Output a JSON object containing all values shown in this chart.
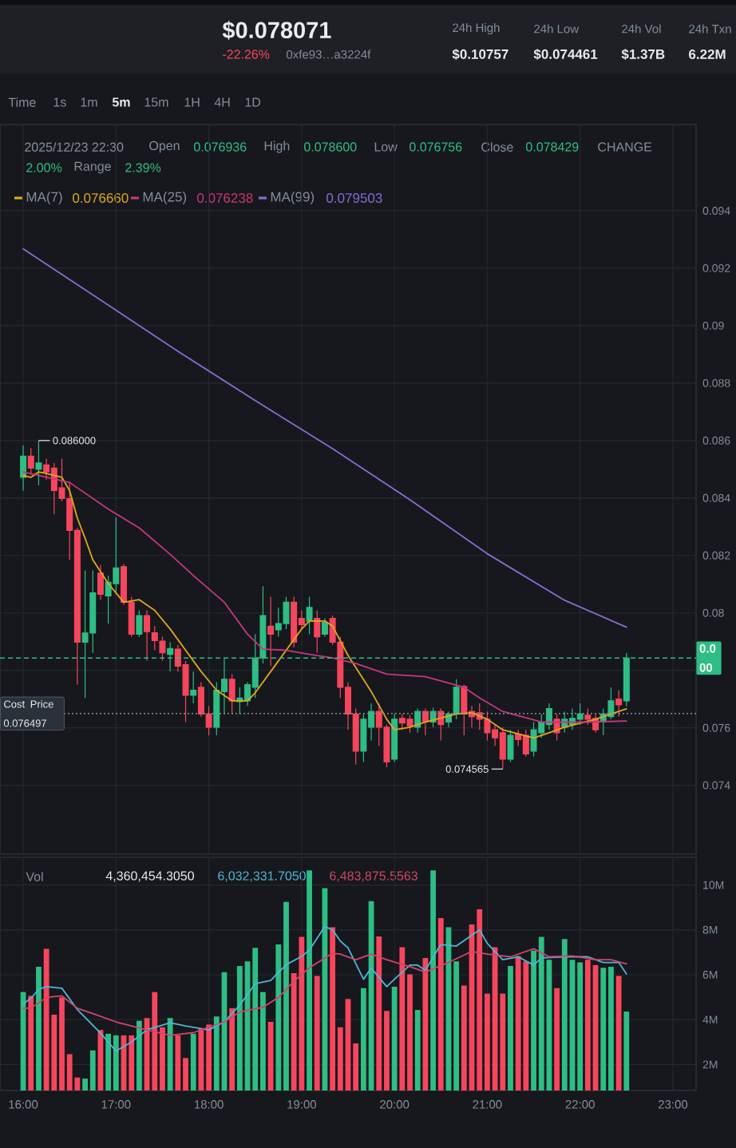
{
  "chart_data": [
    {
      "type": "candlestick",
      "title": "$0.078071",
      "subtitle": "-22.26%",
      "x": [
        16,
        16.0833,
        16.1667,
        16.25,
        16.3333,
        16.4167,
        16.5,
        16.5833,
        16.6667,
        16.75,
        16.8333,
        16.9167,
        17,
        17.0833,
        17.1667,
        17.25,
        17.3333,
        17.4167,
        17.5,
        17.5833,
        17.6667,
        17.75,
        17.8333,
        17.9167,
        18,
        18.0833,
        18.1667,
        18.25,
        18.3333,
        18.4167,
        18.5,
        18.5833,
        18.6667,
        18.75,
        18.8333,
        18.9167,
        19,
        19.0833,
        19.1667,
        19.25,
        19.3333,
        19.4167,
        19.5,
        19.5833,
        19.6667,
        19.75,
        19.8333,
        19.9167,
        20,
        20.0833,
        20.1667,
        20.25,
        20.3333,
        20.4167,
        20.5,
        20.5833,
        20.6667,
        20.75,
        20.8333,
        20.9167,
        21,
        21.0833,
        21.1667,
        21.25,
        21.3333,
        21.4167,
        21.5,
        21.5833,
        21.6667,
        21.75,
        21.8333,
        21.9167,
        22,
        22.0833,
        22.1667,
        22.25,
        22.3333,
        22.4167,
        22.5
      ],
      "ohlc": [
        [
          0.08472,
          0.08583,
          0.08426,
          0.08546
        ],
        [
          0.08546,
          0.08574,
          0.08481,
          0.08504
        ],
        [
          0.085,
          0.086,
          0.08444,
          0.08522
        ],
        [
          0.08515,
          0.08537,
          0.08463,
          0.08491
        ],
        [
          0.08504,
          0.08522,
          0.08343,
          0.08426
        ],
        [
          0.08435,
          0.08537,
          0.08389,
          0.08398
        ],
        [
          0.08398,
          0.08454,
          0.08185,
          0.08287
        ],
        [
          0.08287,
          0.08296,
          0.0775,
          0.07898
        ],
        [
          0.07898,
          0.08148,
          0.07704,
          0.0793
        ],
        [
          0.0793,
          0.08148,
          0.07861,
          0.0807
        ],
        [
          0.08139,
          0.08167,
          0.08046,
          0.08065
        ],
        [
          0.08059,
          0.0813,
          0.07963,
          0.08107
        ],
        [
          0.08102,
          0.08333,
          0.08065,
          0.08157
        ],
        [
          0.08161,
          0.0817,
          0.08028,
          0.08037
        ],
        [
          0.08037,
          0.08056,
          0.07917,
          0.07926
        ],
        [
          0.07926,
          0.08009,
          0.07917,
          0.07991
        ],
        [
          0.07991,
          0.08009,
          0.07833,
          0.07935
        ],
        [
          0.07931,
          0.07954,
          0.0787,
          0.07904
        ],
        [
          0.07902,
          0.07917,
          0.07833,
          0.07861
        ],
        [
          0.07856,
          0.07898,
          0.07796,
          0.07876
        ],
        [
          0.07874,
          0.07889,
          0.07796,
          0.07815
        ],
        [
          0.0782,
          0.07833,
          0.0762,
          0.07713
        ],
        [
          0.07713,
          0.07796,
          0.07685,
          0.07731
        ],
        [
          0.07741,
          0.07759,
          0.07639,
          0.07648
        ],
        [
          0.07648,
          0.07676,
          0.07574,
          0.07602
        ],
        [
          0.07602,
          0.07759,
          0.07574,
          0.07731
        ],
        [
          0.07726,
          0.07843,
          0.07648,
          0.07769
        ],
        [
          0.07769,
          0.07787,
          0.07648,
          0.07694
        ],
        [
          0.07691,
          0.07741,
          0.07648,
          0.07704
        ],
        [
          0.07694,
          0.07759,
          0.07676,
          0.0775
        ],
        [
          0.07741,
          0.07926,
          0.07704,
          0.07843
        ],
        [
          0.07843,
          0.08093,
          0.07824,
          0.07991
        ],
        [
          0.07954,
          0.08056,
          0.07815,
          0.07926
        ],
        [
          0.07941,
          0.08019,
          0.07917,
          0.07963
        ],
        [
          0.07963,
          0.08056,
          0.07944,
          0.08037
        ],
        [
          0.08037,
          0.08056,
          0.0788,
          0.07898
        ],
        [
          0.07981,
          0.08009,
          0.07944,
          0.07959
        ],
        [
          0.07972,
          0.08056,
          0.07926,
          0.08019
        ],
        [
          0.07981,
          0.08009,
          0.07861,
          0.07917
        ],
        [
          0.07926,
          0.07981,
          0.07917,
          0.07967
        ],
        [
          0.07981,
          0.07991,
          0.07889,
          0.07898
        ],
        [
          0.07898,
          0.07917,
          0.07704,
          0.07741
        ],
        [
          0.07741,
          0.07759,
          0.07593,
          0.07648
        ],
        [
          0.07648,
          0.07667,
          0.07472,
          0.07519
        ],
        [
          0.07519,
          0.07648,
          0.07481,
          0.0763
        ],
        [
          0.07602,
          0.07685,
          0.07556,
          0.07657
        ],
        [
          0.07657,
          0.07685,
          0.07537,
          0.07602
        ],
        [
          0.07602,
          0.07611,
          0.07463,
          0.07481
        ],
        [
          0.07491,
          0.07648,
          0.07481,
          0.0763
        ],
        [
          0.07633,
          0.07648,
          0.07593,
          0.07617
        ],
        [
          0.0763,
          0.07644,
          0.07583,
          0.07607
        ],
        [
          0.07602,
          0.07667,
          0.07583,
          0.07657
        ],
        [
          0.07657,
          0.07667,
          0.07574,
          0.0762
        ],
        [
          0.0762,
          0.0767,
          0.07602,
          0.07657
        ],
        [
          0.07657,
          0.07667,
          0.07556,
          0.07611
        ],
        [
          0.0762,
          0.07657,
          0.07602,
          0.07648
        ],
        [
          0.07648,
          0.07769,
          0.0763,
          0.07741
        ],
        [
          0.07744,
          0.0775,
          0.07574,
          0.07648
        ],
        [
          0.07657,
          0.07676,
          0.07602,
          0.07639
        ],
        [
          0.07652,
          0.07685,
          0.07593,
          0.0763
        ],
        [
          0.0763,
          0.07657,
          0.07556,
          0.07583
        ],
        [
          0.07593,
          0.07611,
          0.07537,
          0.07565
        ],
        [
          0.07583,
          0.07602,
          0.074565,
          0.07491
        ],
        [
          0.07491,
          0.07593,
          0.07481,
          0.07574
        ],
        [
          0.07578,
          0.07593,
          0.07537,
          0.07559
        ],
        [
          0.07574,
          0.07593,
          0.075,
          0.07509
        ],
        [
          0.07519,
          0.0762,
          0.075,
          0.07593
        ],
        [
          0.07583,
          0.07648,
          0.07565,
          0.0762
        ],
        [
          0.07611,
          0.07685,
          0.07593,
          0.07667
        ],
        [
          0.0763,
          0.07648,
          0.07556,
          0.07583
        ],
        [
          0.07602,
          0.07657,
          0.07583,
          0.0763
        ],
        [
          0.07611,
          0.07667,
          0.07593,
          0.07633
        ],
        [
          0.0763,
          0.07685,
          0.07611,
          0.07648
        ],
        [
          0.07644,
          0.07667,
          0.07611,
          0.0763
        ],
        [
          0.07633,
          0.07648,
          0.07583,
          0.07593
        ],
        [
          0.0762,
          0.07667,
          0.07574,
          0.07648
        ],
        [
          0.07639,
          0.07741,
          0.0763,
          0.07694
        ],
        [
          0.077,
          0.07731,
          0.07639,
          0.0768
        ],
        [
          0.076936,
          0.0786,
          0.076756,
          0.078429
        ]
      ],
      "colors": [
        "#2ebd85",
        "#f6465d",
        "#2ebd85",
        "#f6465d",
        "#f6465d",
        "#f6465d",
        "#f6465d",
        "#f6465d",
        "#2ebd85",
        "#2ebd85",
        "#f6465d",
        "#2ebd85",
        "#2ebd85",
        "#f6465d",
        "#f6465d",
        "#2ebd85",
        "#f6465d",
        "#f6465d",
        "#f6465d",
        "#2ebd85",
        "#f6465d",
        "#f6465d",
        "#2ebd85",
        "#f6465d",
        "#f6465d",
        "#2ebd85",
        "#2ebd85",
        "#f6465d",
        "#2ebd85",
        "#2ebd85",
        "#2ebd85",
        "#2ebd85",
        "#f6465d",
        "#2ebd85",
        "#2ebd85",
        "#f6465d",
        "#f6465d",
        "#2ebd85",
        "#f6465d",
        "#2ebd85",
        "#f6465d",
        "#f6465d",
        "#f6465d",
        "#f6465d",
        "#2ebd85",
        "#2ebd85",
        "#f6465d",
        "#f6465d",
        "#2ebd85",
        "#f6465d",
        "#f6465d",
        "#2ebd85",
        "#f6465d",
        "#2ebd85",
        "#f6465d",
        "#2ebd85",
        "#2ebd85",
        "#f6465d",
        "#f6465d",
        "#f6465d",
        "#f6465d",
        "#f6465d",
        "#f6465d",
        "#2ebd85",
        "#f6465d",
        "#f6465d",
        "#2ebd85",
        "#2ebd85",
        "#2ebd85",
        "#f6465d",
        "#2ebd85",
        "#2ebd85",
        "#2ebd85",
        "#f6465d",
        "#f6465d",
        "#2ebd85",
        "#2ebd85",
        "#f6465d",
        "#2ebd85"
      ],
      "series": [
        {
          "name": "MA(7)",
          "type": "line",
          "color": "#e0a81c",
          "x": [
            16,
            16.0833,
            16.1667,
            16.25,
            16.4167,
            16.5,
            16.5833,
            16.6667,
            16.75,
            16.9167,
            17.0833,
            17.25,
            17.4167,
            17.5833,
            17.75,
            17.9167,
            18.0833,
            18.25,
            18.4167,
            18.5,
            18.6667,
            18.8333,
            19,
            19.0833,
            19.25,
            19.3333,
            19.5,
            19.75,
            19.9167,
            20,
            20.1667,
            20.3333,
            20.6667,
            20.8333,
            21,
            21.1667,
            21.5,
            21.6667,
            21.8333,
            22.1667,
            22.3333,
            22.5
          ],
          "values": [
            0.08478,
            0.08472,
            0.08491,
            0.08485,
            0.08472,
            0.08426,
            0.0833,
            0.0826,
            0.08185,
            0.08102,
            0.08037,
            0.08046,
            0.08009,
            0.07944,
            0.0787,
            0.07796,
            0.07731,
            0.07694,
            0.07694,
            0.07722,
            0.07796,
            0.0787,
            0.07944,
            0.07972,
            0.07972,
            0.07954,
            0.07852,
            0.07726,
            0.0763,
            0.07593,
            0.07602,
            0.0762,
            0.07648,
            0.07652,
            0.0763,
            0.07593,
            0.07565,
            0.07583,
            0.07602,
            0.0763,
            0.07648,
            0.07666
          ]
        },
        {
          "name": "MA(25)",
          "type": "line",
          "color": "#c9357c",
          "x": [
            16,
            16.5,
            16.9167,
            17.25,
            17.5833,
            17.8333,
            18.1667,
            18.4167,
            18.5833,
            18.8333,
            19.0833,
            19.3333,
            19.5833,
            19.9167,
            20.3333,
            20.75,
            20.9167,
            21.1667,
            21.5833,
            21.75,
            22.0833,
            22.5
          ],
          "values": [
            0.08491,
            0.08454,
            0.08361,
            0.08296,
            0.08204,
            0.0813,
            0.08037,
            0.07926,
            0.07874,
            0.0787,
            0.07856,
            0.07843,
            0.07824,
            0.07787,
            0.07778,
            0.07741,
            0.07704,
            0.07657,
            0.0762,
            0.0762,
            0.0762,
            0.076238
          ]
        },
        {
          "name": "MA(99)",
          "type": "line",
          "color": "#8b6ad4",
          "x": [
            16,
            16.8333,
            17.6667,
            18.5,
            19.3333,
            20.1667,
            21,
            21.8333,
            22.5
          ],
          "values": [
            0.09267,
            0.09089,
            0.08911,
            0.08739,
            0.08572,
            0.08394,
            0.08206,
            0.08044,
            0.079503
          ]
        }
      ],
      "xlim": [
        15.75,
        23.25
      ],
      "xticks": [
        16,
        17,
        18,
        19,
        20,
        21,
        22,
        23
      ],
      "ylim": [
        0.0716,
        0.097
      ],
      "yticks": [
        0.074,
        0.076,
        {
          "value": 0.078,
          "label": null
        },
        0.08,
        0.082,
        0.084,
        0.086,
        0.088,
        0.09,
        0.092,
        0.094
      ],
      "tick_labels": "y",
      "grid": true,
      "legend": "top left",
      "ref_lines": [
        {
          "axis": "y",
          "value": 0.078429,
          "label": "0.0 00",
          "color": "#2ebd85",
          "line_style": "dashed"
        },
        {
          "axis": "y",
          "value": 0.076497,
          "label": "Cost Price 0.076497",
          "color": "#848e9c",
          "line_style": "dotted"
        }
      ],
      "annotations": [
        "0xfe93…a3224f",
        "24h High",
        "$0.10757",
        "24h Low",
        "$0.074461",
        "24h Vol",
        "$1.37B",
        "24h Txn",
        "6.22M",
        "Time",
        "1s",
        "1m",
        "5m",
        "15m",
        "1H",
        "4H",
        "1D",
        "2025/12/23 22:30",
        "Open",
        "0.076936",
        "High",
        "0.078600",
        "Low",
        "0.076756",
        "Close",
        "0.078429",
        "CHANGE",
        "2.00%",
        "Range",
        "2.39%",
        "0.076660",
        "0.076238",
        "0.079503",
        {
          "text": "0.086000",
          "x": 16.1667,
          "y": 0.086
        },
        {
          "text": "0.074565",
          "x": 21.1667,
          "y": 0.074565
        }
      ]
    },
    {
      "type": "bar",
      "x": [
        16,
        16.0833,
        16.1667,
        16.25,
        16.3333,
        16.4167,
        16.5,
        16.5833,
        16.6667,
        16.75,
        16.8333,
        16.9167,
        17,
        17.0833,
        17.1667,
        17.25,
        17.3333,
        17.4167,
        17.5,
        17.5833,
        17.6667,
        17.75,
        17.8333,
        17.9167,
        18,
        18.0833,
        18.1667,
        18.25,
        18.3333,
        18.4167,
        18.5,
        18.5833,
        18.6667,
        18.75,
        18.8333,
        18.9167,
        19,
        19.0833,
        19.1667,
        19.25,
        19.3333,
        19.4167,
        19.5,
        19.5833,
        19.6667,
        19.75,
        19.8333,
        19.9167,
        20,
        20.0833,
        20.1667,
        20.25,
        20.3333,
        20.4167,
        20.5,
        20.5833,
        20.6667,
        20.75,
        20.8333,
        20.9167,
        21,
        21.0833,
        21.1667,
        21.25,
        21.3333,
        21.4167,
        21.5,
        21.5833,
        21.6667,
        21.75,
        21.8333,
        21.9167,
        22,
        22.0833,
        22.1667,
        22.25,
        22.3333,
        22.4167,
        22.5
      ],
      "series": [
        {
          "type": "bar",
          "values": [
            5.23,
            5.06,
            6.36,
            7.16,
            4.22,
            4.99,
            2.46,
            1.42,
            1.37,
            2.63,
            3.54,
            3.37,
            3.3,
            3.3,
            3.3,
            3.95,
            4.07,
            5.23,
            3.66,
            4.07,
            3.3,
            2.29,
            3.37,
            3.61,
            3.78,
            4.14,
            6.12,
            4.51,
            6.39,
            6.6,
            7.2,
            5.23,
            3.9,
            7.35,
            9.25,
            6.07,
            7.69,
            10.65,
            5.95,
            9.86,
            8.12,
            3.66,
            4.92,
            2.94,
            5.4,
            9.28,
            7.71,
            4.39,
            5.47,
            7.23,
            6.02,
            4.43,
            6.75,
            10.65,
            8.53,
            8.12,
            6.6,
            5.52,
            8.24,
            8.92,
            5.16,
            7.23,
            5.16,
            6.39,
            6.84,
            6.6,
            7.08,
            7.69,
            6.67,
            5.4,
            7.59,
            6.67,
            6.55,
            6.67,
            6.43,
            6.31,
            6.36,
            5.95,
            4.360454305
          ],
          "colors": [
            "#2ebd85",
            "#f6465d",
            "#2ebd85",
            "#f6465d",
            "#f6465d",
            "#f6465d",
            "#f6465d",
            "#f6465d",
            "#2ebd85",
            "#2ebd85",
            "#f6465d",
            "#2ebd85",
            "#2ebd85",
            "#f6465d",
            "#f6465d",
            "#2ebd85",
            "#f6465d",
            "#f6465d",
            "#f6465d",
            "#2ebd85",
            "#f6465d",
            "#f6465d",
            "#2ebd85",
            "#f6465d",
            "#f6465d",
            "#2ebd85",
            "#2ebd85",
            "#f6465d",
            "#2ebd85",
            "#2ebd85",
            "#2ebd85",
            "#2ebd85",
            "#f6465d",
            "#2ebd85",
            "#2ebd85",
            "#f6465d",
            "#f6465d",
            "#2ebd85",
            "#f6465d",
            "#2ebd85",
            "#f6465d",
            "#f6465d",
            "#f6465d",
            "#f6465d",
            "#2ebd85",
            "#2ebd85",
            "#f6465d",
            "#f6465d",
            "#2ebd85",
            "#f6465d",
            "#f6465d",
            "#2ebd85",
            "#f6465d",
            "#2ebd85",
            "#f6465d",
            "#2ebd85",
            "#2ebd85",
            "#f6465d",
            "#f6465d",
            "#f6465d",
            "#f6465d",
            "#f6465d",
            "#f6465d",
            "#2ebd85",
            "#f6465d",
            "#f6465d",
            "#2ebd85",
            "#2ebd85",
            "#2ebd85",
            "#f6465d",
            "#2ebd85",
            "#2ebd85",
            "#2ebd85",
            "#f6465d",
            "#f6465d",
            "#2ebd85",
            "#2ebd85",
            "#f6465d",
            "#2ebd85"
          ]
        },
        {
          "type": "line",
          "color": "#4fb6d8",
          "x": [
            16,
            16.0833,
            16.1667,
            16.25,
            16.4167,
            16.5833,
            16.8333,
            17,
            17.1667,
            17.3333,
            17.5833,
            17.75,
            18,
            18.1667,
            18.3333,
            18.5,
            18.6667,
            18.8333,
            19,
            19.0833,
            19.25,
            19.3333,
            19.4167,
            19.5,
            19.6667,
            19.75,
            19.9167,
            20,
            20.1667,
            20.25,
            20.3333,
            20.5,
            20.6667,
            20.9167,
            21,
            21.1667,
            21.3333,
            21.5,
            21.5833,
            21.8333,
            22.0833,
            22.25,
            22.4167,
            22.5
          ],
          "values": [
            4.7,
            4.95,
            5.35,
            5.47,
            5.4,
            4.45,
            3.4,
            2.6,
            3.0,
            3.55,
            3.86,
            3.72,
            3.54,
            3.9,
            4.65,
            5.6,
            5.75,
            6.45,
            6.82,
            7.1,
            8.15,
            8.0,
            7.5,
            7.2,
            5.8,
            6.3,
            5.47,
            5.8,
            6.43,
            6.43,
            6.2,
            7.35,
            7.28,
            8.0,
            7.4,
            6.67,
            6.8,
            6.43,
            6.75,
            6.8,
            6.8,
            6.55,
            6.55,
            6.032331705
          ]
        },
        {
          "type": "line",
          "color": "#d2456a",
          "x": [
            16,
            16.0833,
            16.25,
            16.4167,
            16.5833,
            16.75,
            17,
            17.3333,
            17.5833,
            17.8333,
            18.1667,
            18.3333,
            18.5833,
            18.75,
            18.9167,
            19.0833,
            19.3333,
            19.4167,
            19.5833,
            19.75,
            19.9167,
            20.1667,
            20.3333,
            20.5833,
            20.8333,
            21,
            21.25,
            21.5,
            21.6667,
            21.9167,
            22.1667,
            22.3333,
            22.5
          ],
          "values": [
            4.51,
            4.51,
            4.99,
            5.06,
            4.51,
            4.27,
            3.9,
            3.54,
            3.3,
            3.42,
            3.9,
            4.34,
            4.55,
            4.99,
            5.71,
            6.31,
            6.96,
            6.92,
            6.67,
            6.92,
            6.67,
            6.36,
            6.12,
            6.55,
            7.04,
            6.92,
            6.8,
            7.16,
            6.8,
            6.84,
            6.67,
            6.67,
            6.4838755563
          ]
        }
      ],
      "xlim": [
        15.75,
        23.25
      ],
      "xticks": [
        {
          "value": 16,
          "label": "16:00"
        },
        {
          "value": 17,
          "label": "17:00"
        },
        {
          "value": 18,
          "label": "18:00"
        },
        {
          "value": 19,
          "label": "19:00"
        },
        {
          "value": 20,
          "label": "20:00"
        },
        {
          "value": 21,
          "label": "21:00"
        },
        {
          "value": 22,
          "label": "22:00"
        },
        {
          "value": 23,
          "label": "23:00"
        }
      ],
      "ylim": [
        0.84,
        11.23
      ],
      "yticks": [
        {
          "value": 2,
          "label": "2M"
        },
        {
          "value": 4,
          "label": "4M"
        },
        {
          "value": 6,
          "label": "6M"
        },
        {
          "value": 8,
          "label": "8M"
        },
        {
          "value": 10,
          "label": "10M"
        }
      ],
      "grid": true,
      "annotations": [
        "Vol",
        "4,360,454.3050",
        "6,032,331.7050",
        "6,483,875.5563"
      ]
    }
  ]
}
